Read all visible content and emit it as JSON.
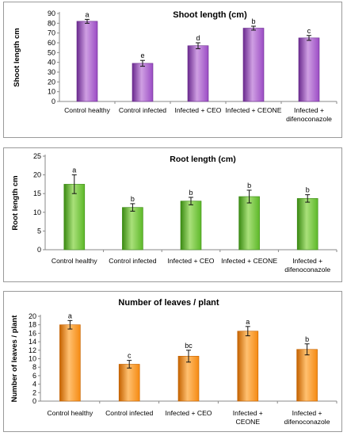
{
  "chart_data": [
    {
      "type": "bar",
      "title": "Shoot length (cm)",
      "ylabel": "Shoot length  cm",
      "xlabel": "",
      "categories": [
        [
          "Control healthy"
        ],
        [
          "Control infected"
        ],
        [
          "Infected + CEO"
        ],
        [
          "Infected + CEONE"
        ],
        [
          "Infected +",
          "difenoconazole"
        ]
      ],
      "values": [
        82,
        39,
        57,
        75,
        65
      ],
      "errors": [
        2,
        3,
        3,
        2,
        2.5
      ],
      "letters": [
        "a",
        "e",
        "d",
        "b",
        "c"
      ],
      "ylim": [
        0,
        90
      ],
      "yticks": [
        0,
        10,
        20,
        30,
        40,
        50,
        60,
        70,
        80,
        90
      ],
      "colors": {
        "light": "#cf9fe3",
        "mid": "#9b4cc4",
        "dark": "#6a2a8e"
      },
      "grid": false,
      "legend": false
    },
    {
      "type": "bar",
      "title": "Root length (cm)",
      "ylabel": "Root length  cm",
      "xlabel": "",
      "categories": [
        [
          "Control healthy"
        ],
        [
          "Control infected"
        ],
        [
          "Infected + CEO"
        ],
        [
          "Infected + CEONE"
        ],
        [
          "Infected +",
          "difenoconazole"
        ]
      ],
      "values": [
        17.5,
        11.3,
        13,
        14.2,
        13.7
      ],
      "errors": [
        2.5,
        1,
        1,
        1.7,
        1
      ],
      "letters": [
        "a",
        "b",
        "b",
        "b",
        "b"
      ],
      "ylim": [
        0,
        25
      ],
      "yticks": [
        0,
        5,
        10,
        15,
        20,
        25
      ],
      "colors": {
        "light": "#a9e07a",
        "mid": "#5db829",
        "dark": "#3a8a12"
      },
      "grid": false,
      "legend": false
    },
    {
      "type": "bar",
      "title": "Number of leaves / plant",
      "ylabel": "Number of leaves / plant",
      "xlabel": "",
      "categories": [
        [
          "Control healthy"
        ],
        [
          "Control infected"
        ],
        [
          "Infected + CEO"
        ],
        [
          "Infected +",
          "CEONE"
        ],
        [
          "Infected +",
          "difenoconazole"
        ]
      ],
      "values": [
        18,
        8.7,
        10.6,
        16.5,
        12.2
      ],
      "errors": [
        1,
        0.9,
        1.4,
        1.1,
        1.3
      ],
      "letters": [
        "a",
        "c",
        "bc",
        "a",
        "b"
      ],
      "ylim": [
        0,
        20
      ],
      "yticks": [
        0,
        2,
        4,
        6,
        8,
        10,
        12,
        14,
        16,
        18,
        20
      ],
      "colors": {
        "light": "#ffc070",
        "mid": "#f58a12",
        "dark": "#c46200"
      },
      "grid": false,
      "legend": false
    }
  ]
}
